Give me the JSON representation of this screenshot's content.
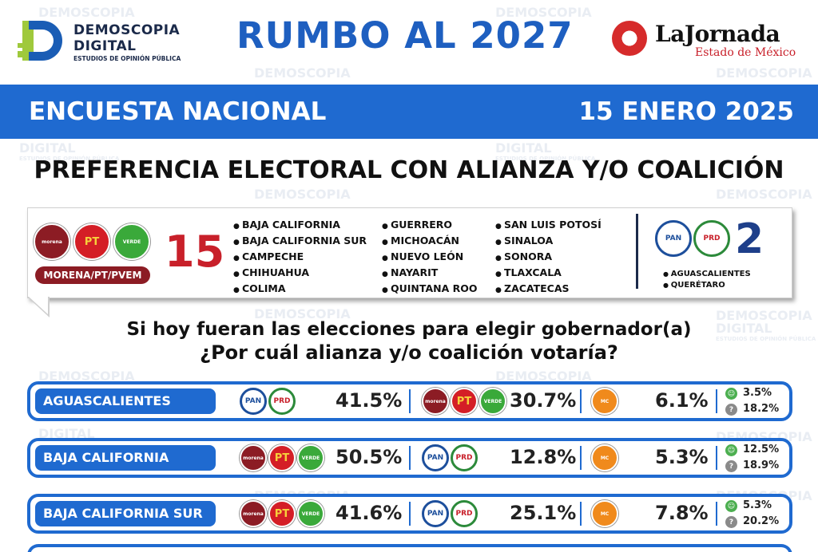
{
  "header": {
    "logo_line1": "DEMOSCOPIA",
    "logo_line2": "DIGITAL",
    "logo_line3": "ESTUDIOS DE OPINIÓN PÚBLICA",
    "title": "RUMBO AL 2027",
    "partner_name": "LaJornada",
    "partner_sub": "Estado de México"
  },
  "band": {
    "left": "ENCUESTA NACIONAL",
    "right": "15 ENERO 2025"
  },
  "subtitle": "PREFERENCIA ELECTORAL CON ALIANZA Y/O COALICIÓN",
  "alliance": {
    "coalition_label": "MORENA/PT/PVEM",
    "coalition_count": "15",
    "opposition_count": "2",
    "badges": {
      "morena": "morena",
      "pt": "PT",
      "verde": "VERDE",
      "pan": "PAN",
      "prd": "PRD",
      "mc": "MC"
    },
    "states_col1": [
      "BAJA CALIFORNIA",
      "BAJA CALIFORNIA SUR",
      "CAMPECHE",
      "CHIHUAHUA",
      "COLIMA"
    ],
    "states_col2": [
      "GUERRERO",
      "MICHOACÁN",
      "NUEVO LEÓN",
      "NAYARIT",
      "QUINTANA ROO"
    ],
    "states_col3": [
      "SAN LUIS POTOSÍ",
      "SINALOA",
      "SONORA",
      "TLAXCALA",
      "ZACATECAS"
    ],
    "opposition_states": [
      "AGUASCALIENTES",
      "QUERÉTARO"
    ]
  },
  "question": {
    "line1": "Si hoy fueran las elecciones para elegir gobernador(a)",
    "line2": "¿Por cuál alianza y/o coalición votaría?"
  },
  "rows": [
    {
      "state": "AGUASCALIENTES",
      "first": "PAN/PRD",
      "first_pct": "41.5%",
      "second": "MORENA/PT/PVEM",
      "second_pct": "30.7%",
      "mc_pct": "6.1%",
      "other_pct": "3.5%",
      "undecided_pct": "18.2%"
    },
    {
      "state": "BAJA CALIFORNIA",
      "first": "MORENA/PT/PVEM",
      "first_pct": "50.5%",
      "second": "PAN/PRD",
      "second_pct": "12.8%",
      "mc_pct": "5.3%",
      "other_pct": "12.5%",
      "undecided_pct": "18.9%"
    },
    {
      "state": "BAJA CALIFORNIA SUR",
      "first": "MORENA/PT/PVEM",
      "first_pct": "41.6%",
      "second": "PAN/PRD",
      "second_pct": "25.1%",
      "mc_pct": "7.8%",
      "other_pct": "5.3%",
      "undecided_pct": "20.2%"
    }
  ],
  "icons": {
    "other": "person-icon",
    "undecided": "question-icon"
  },
  "colors": {
    "brand_blue": "#1f6ad0",
    "morena": "#8c1c24",
    "pt": "#d41e26",
    "verde": "#3aa93a",
    "pan": "#1d4f9c",
    "mc": "#f08a1c"
  }
}
